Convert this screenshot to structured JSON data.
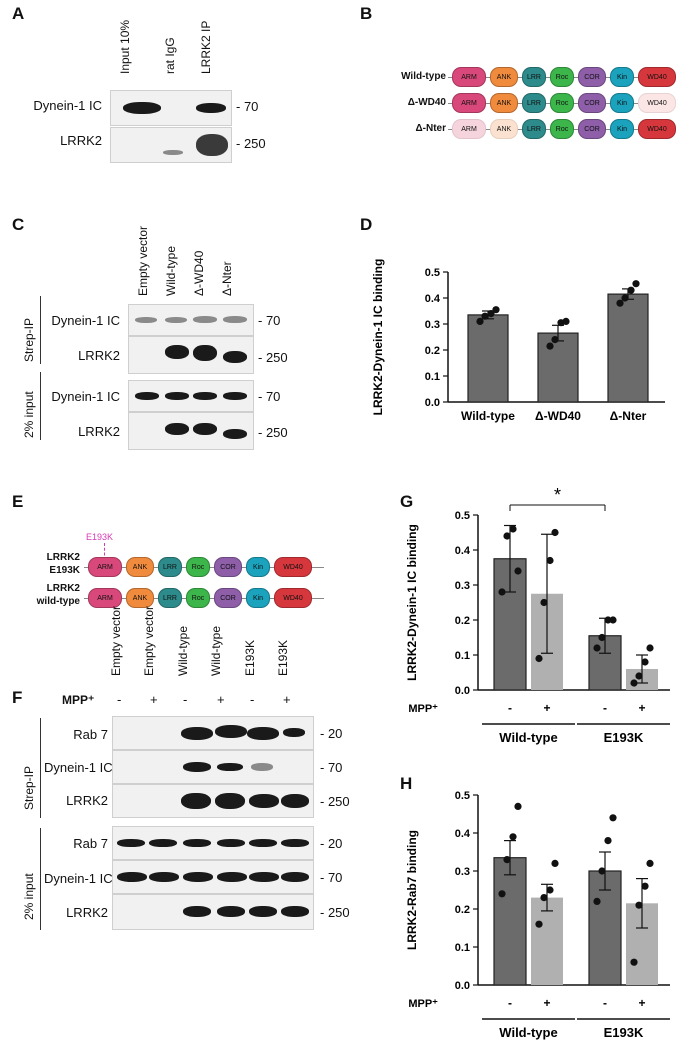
{
  "panels": {
    "A": {
      "letter": "A",
      "lanes": [
        "Input 10%",
        "rat IgG",
        "LRRK2 IP"
      ],
      "rows": [
        "Dynein-1 IC",
        "LRRK2"
      ],
      "mw": [
        "- 70",
        "- 250"
      ]
    },
    "B": {
      "letter": "B",
      "constructs": [
        "Wild-type",
        "Δ-WD40",
        "Δ-Nter"
      ],
      "domains": [
        "ARM",
        "ANK",
        "LRR",
        "Roc",
        "COR",
        "Kin",
        "WD40"
      ],
      "colors": {
        "ARM": "#d9487a",
        "ANK": "#f08a3c",
        "LRR": "#2e8b8b",
        "Roc": "#3cb54a",
        "COR": "#8e5fa8",
        "Kin": "#1ba2bd",
        "WD40": "#d6373c",
        "ARM_faded": "#f6d4de",
        "ANK_faded": "#fbe1cf",
        "WD40_faded": "#fbe5e5"
      }
    },
    "C": {
      "letter": "C",
      "lanes": [
        "Empty vector",
        "Wild-type",
        "Δ-WD40",
        "Δ-Nter"
      ],
      "groups": [
        "Strep-IP",
        "2% input"
      ],
      "rows": [
        "Dynein-1 IC",
        "LRRK2",
        "Dynein-1 IC",
        "LRRK2"
      ],
      "mw": [
        "- 70",
        "- 250",
        "- 70",
        "- 250"
      ]
    },
    "D": {
      "letter": "D"
    },
    "E": {
      "letter": "E",
      "mutation": "E193K",
      "constructs": [
        "LRRK2\nE193K",
        "LRRK2\nwild-type"
      ],
      "construct_lines": [
        [
          "LRRK2",
          "E193K"
        ],
        [
          "LRRK2",
          "wild-type"
        ]
      ]
    },
    "F": {
      "letter": "F",
      "lanes": [
        "Empty vector",
        "Empty vector",
        "Wild-type",
        "Wild-type",
        "E193K",
        "E193K"
      ],
      "mpp_label": "MPP⁺",
      "mpp": [
        "-",
        "+",
        "-",
        "+",
        "-",
        "+"
      ],
      "groups": [
        "Strep-IP",
        "2% input"
      ],
      "rows": [
        "Rab 7",
        "Dynein-1 IC",
        "LRRK2",
        "Rab 7",
        "Dynein-1 IC",
        "LRRK2"
      ],
      "mw": [
        "- 20",
        "- 70",
        "- 250",
        "- 20",
        "- 70",
        "- 250"
      ]
    },
    "G": {
      "letter": "G",
      "significance": "*"
    },
    "H": {
      "letter": "H"
    }
  },
  "chart_data": [
    {
      "id": "D",
      "type": "bar",
      "categories": [
        "Wild-type",
        "Δ-WD40",
        "Δ-Nter"
      ],
      "values": [
        0.335,
        0.265,
        0.415
      ],
      "errors": [
        0.015,
        0.03,
        0.02
      ],
      "points": [
        [
          0.31,
          0.33,
          0.34,
          0.355
        ],
        [
          0.215,
          0.24,
          0.305,
          0.31
        ],
        [
          0.38,
          0.4,
          0.43,
          0.455
        ]
      ],
      "ylabel": "LRRK2-Dynein-1 IC binding",
      "ylim": [
        0.0,
        0.5
      ],
      "yticks": [
        "0.0",
        "0.1",
        "0.2",
        "0.3",
        "0.4",
        "0.5"
      ],
      "colors": [
        "#6b6b6b"
      ]
    },
    {
      "id": "G",
      "type": "bar",
      "categories": [
        "-",
        "+",
        "-",
        "+"
      ],
      "groups": [
        "Wild-type",
        "E193K"
      ],
      "xaxis_label": "MPP⁺",
      "values": [
        0.375,
        0.275,
        0.155,
        0.06
      ],
      "errors": [
        0.095,
        0.17,
        0.05,
        0.04
      ],
      "points": [
        [
          0.28,
          0.44,
          0.46,
          0.34
        ],
        [
          0.09,
          0.25,
          0.37,
          0.45
        ],
        [
          0.12,
          0.15,
          0.2,
          0.2
        ],
        [
          0.02,
          0.04,
          0.08,
          0.12
        ]
      ],
      "ylabel": "LRRK2-Dynein-1 IC binding",
      "ylim": [
        0.0,
        0.5
      ],
      "yticks": [
        "0.0",
        "0.1",
        "0.2",
        "0.3",
        "0.4",
        "0.5"
      ],
      "colors": [
        "#6b6b6b",
        "#b0b0b0",
        "#6b6b6b",
        "#b0b0b0"
      ]
    },
    {
      "id": "H",
      "type": "bar",
      "categories": [
        "-",
        "+",
        "-",
        "+"
      ],
      "groups": [
        "Wild-type",
        "E193K"
      ],
      "xaxis_label": "MPP⁺",
      "values": [
        0.335,
        0.23,
        0.3,
        0.215
      ],
      "errors": [
        0.045,
        0.035,
        0.05,
        0.065
      ],
      "points": [
        [
          0.24,
          0.33,
          0.39,
          0.47
        ],
        [
          0.16,
          0.23,
          0.25,
          0.32
        ],
        [
          0.22,
          0.3,
          0.38,
          0.44
        ],
        [
          0.06,
          0.21,
          0.26,
          0.32
        ]
      ],
      "ylabel": "LRRK2-Rab7 binding",
      "ylim": [
        0.0,
        0.5
      ],
      "yticks": [
        "0.0",
        "0.1",
        "0.2",
        "0.3",
        "0.4",
        "0.5"
      ],
      "colors": [
        "#6b6b6b",
        "#b0b0b0",
        "#6b6b6b",
        "#b0b0b0"
      ]
    }
  ]
}
